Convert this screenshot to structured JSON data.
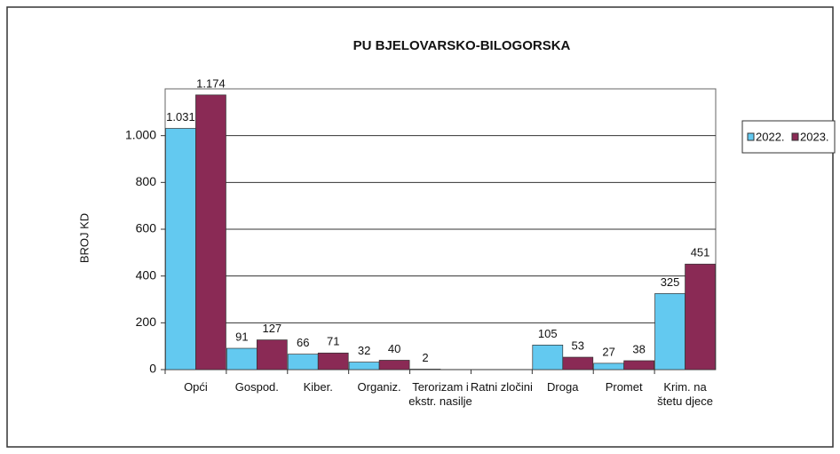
{
  "chart_data": {
    "type": "bar",
    "title": "PU BJELOVARSKO-BILOGORSKA",
    "y_label": "BROJ KD",
    "categories": [
      "Opći",
      "Gospod.",
      "Kiber.",
      "Organiz.",
      "Terorizam i ekstr. nasilje",
      "Ratni zločini",
      "Droga",
      "Promet",
      "Krim. na štetu djece"
    ],
    "series": [
      {
        "name": "2022.",
        "color": "#63c9f0",
        "values": [
          1031,
          91,
          66,
          32,
          2,
          0,
          105,
          27,
          325
        ],
        "value_labels": [
          "1.031",
          "91",
          "66",
          "32",
          "2",
          null,
          "105",
          "27",
          "325"
        ]
      },
      {
        "name": "2023.",
        "color": "#8a2a55",
        "values": [
          1174,
          127,
          71,
          40,
          0,
          0,
          53,
          38,
          451
        ],
        "value_labels": [
          "1.174",
          "127",
          "71",
          "40",
          null,
          null,
          "53",
          "38",
          "451"
        ]
      }
    ],
    "ylim": [
      0,
      1200
    ],
    "yticks": [
      0,
      200,
      400,
      600,
      800,
      {
        "value": 1000,
        "label": "1.000"
      }
    ],
    "grid": true,
    "legend": "right"
  }
}
